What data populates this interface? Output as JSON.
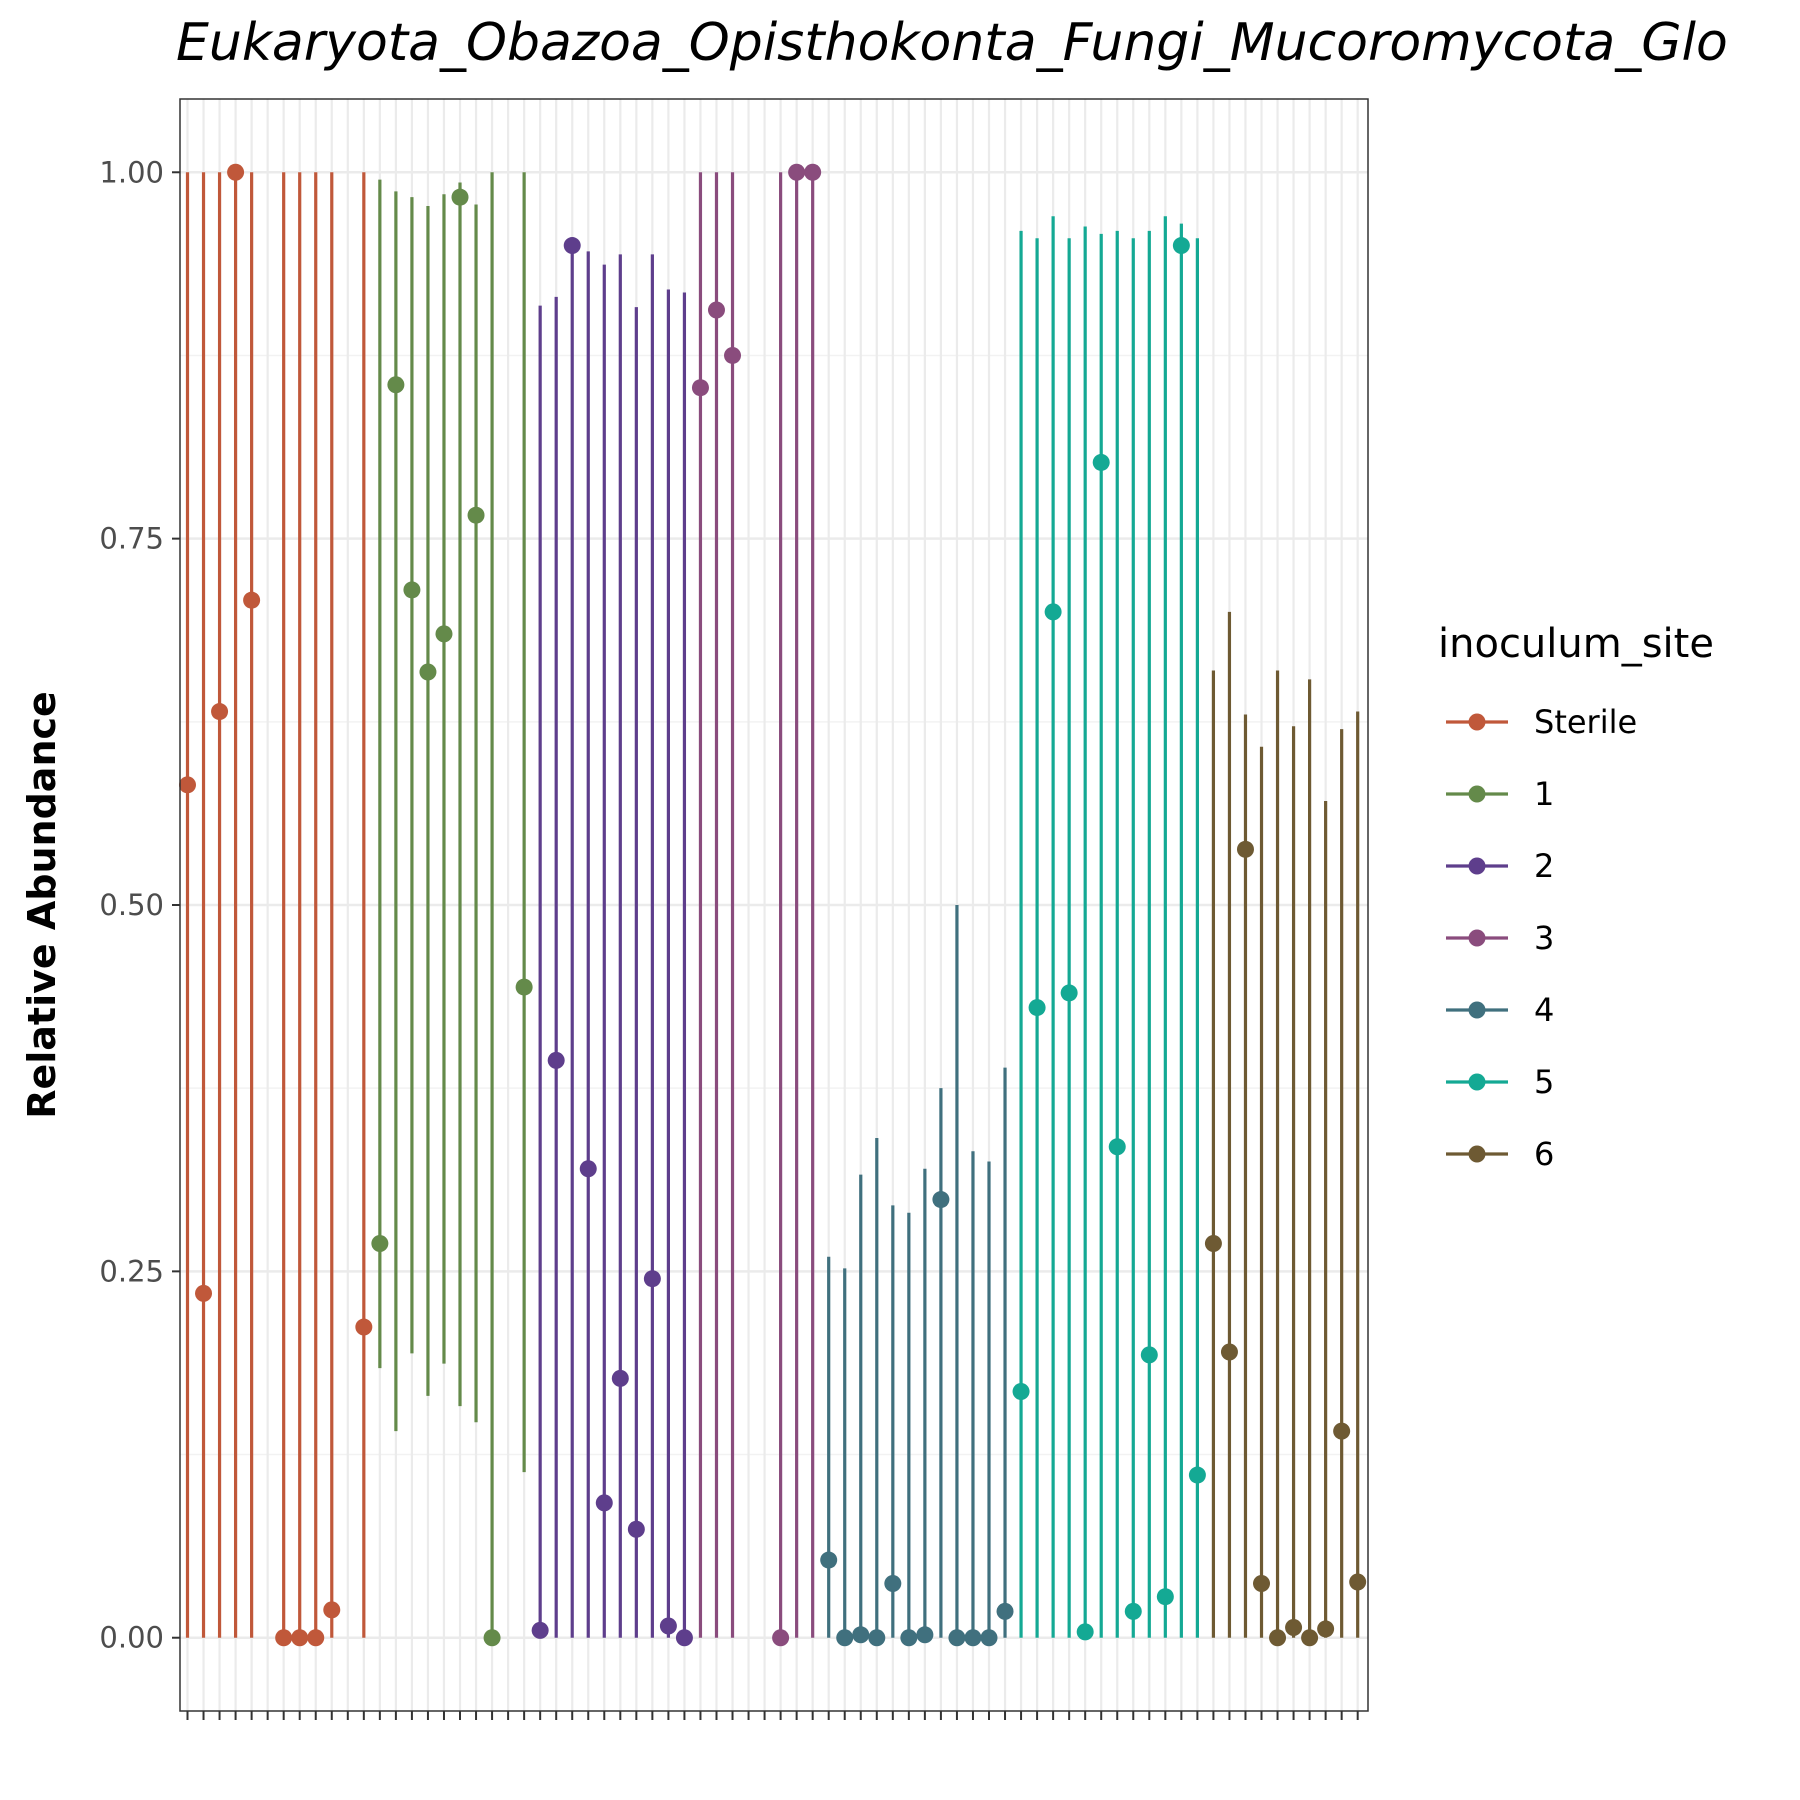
{
  "chart_data": {
    "type": "linerange",
    "title": "Eukaryota_Obazoa_Opisthokonta_Fungi_Mucoromycota_Glo",
    "xlabel": "",
    "ylabel": "Relative Abundance",
    "ylim": [
      -0.05,
      1.05
    ],
    "yticks": [
      "0.00",
      "0.25",
      "0.50",
      "0.75",
      "1.00"
    ],
    "ytick_values": [
      0,
      0.25,
      0.5,
      0.75,
      1.0
    ],
    "grid": true,
    "x_tick_count": 74,
    "legend": {
      "title": "inoculum_site",
      "position": "right",
      "entries": [
        {
          "label": "Sterile",
          "color": "#c0583a"
        },
        {
          "label": "1",
          "color": "#648a4a"
        },
        {
          "label": "2",
          "color": "#5e3e8c"
        },
        {
          "label": "3",
          "color": "#8a4c7d"
        },
        {
          "label": "4",
          "color": "#40707e"
        },
        {
          "label": "5",
          "color": "#14a994"
        },
        {
          "label": "6",
          "color": "#6e5a33"
        }
      ]
    },
    "series": [
      {
        "name": "Sterile",
        "color": "#c0583a",
        "points": [
          {
            "x": 1,
            "ymin": 0,
            "ymax": 1.0,
            "y": 0.582
          },
          {
            "x": 2,
            "ymin": 0,
            "ymax": 1.0,
            "y": 0.235
          },
          {
            "x": 3,
            "ymin": 0,
            "ymax": 1.0,
            "y": 0.632
          },
          {
            "x": 4,
            "ymin": 0,
            "ymax": 1.0,
            "y": 1.0
          },
          {
            "x": 5,
            "ymin": 0,
            "ymax": 1.0,
            "y": 0.708
          },
          {
            "x": 7,
            "ymin": 0,
            "ymax": 1.0,
            "y": 0.0
          },
          {
            "x": 8,
            "ymin": 0,
            "ymax": 1.0,
            "y": 0.0
          },
          {
            "x": 9,
            "ymin": 0,
            "ymax": 1.0,
            "y": 0.0
          },
          {
            "x": 10,
            "ymin": 0,
            "ymax": 1.0,
            "y": 0.019
          },
          {
            "x": 12,
            "ymin": 0,
            "ymax": 1.0,
            "y": 0.212
          }
        ]
      },
      {
        "name": "1",
        "color": "#648a4a",
        "points": [
          {
            "x": 13,
            "ymin": 0.184,
            "ymax": 0.995,
            "y": 0.269
          },
          {
            "x": 14,
            "ymin": 0.141,
            "ymax": 0.987,
            "y": 0.855
          },
          {
            "x": 15,
            "ymin": 0.194,
            "ymax": 0.983,
            "y": 0.715
          },
          {
            "x": 16,
            "ymin": 0.165,
            "ymax": 0.977,
            "y": 0.659
          },
          {
            "x": 17,
            "ymin": 0.187,
            "ymax": 0.985,
            "y": 0.685
          },
          {
            "x": 18,
            "ymin": 0.158,
            "ymax": 0.993,
            "y": 0.983
          },
          {
            "x": 19,
            "ymin": 0.147,
            "ymax": 0.978,
            "y": 0.766
          },
          {
            "x": 20,
            "ymin": 0,
            "ymax": 1.0,
            "y": 0.0
          },
          {
            "x": 22,
            "ymin": 0.113,
            "ymax": 1.0,
            "y": 0.444
          }
        ]
      },
      {
        "name": "2",
        "color": "#5e3e8c",
        "points": [
          {
            "x": 23,
            "ymin": 0,
            "ymax": 0.909,
            "y": 0.005
          },
          {
            "x": 24,
            "ymin": 0,
            "ymax": 0.915,
            "y": 0.394
          },
          {
            "x": 25,
            "ymin": 0,
            "ymax": 0.95,
            "y": 0.95
          },
          {
            "x": 26,
            "ymin": 0,
            "ymax": 0.946,
            "y": 0.32
          },
          {
            "x": 27,
            "ymin": 0,
            "ymax": 0.937,
            "y": 0.092
          },
          {
            "x": 28,
            "ymin": 0,
            "ymax": 0.944,
            "y": 0.177
          },
          {
            "x": 29,
            "ymin": 0,
            "ymax": 0.908,
            "y": 0.074
          },
          {
            "x": 30,
            "ymin": 0,
            "ymax": 0.944,
            "y": 0.245
          },
          {
            "x": 31,
            "ymin": 0,
            "ymax": 0.92,
            "y": 0.008
          },
          {
            "x": 32,
            "ymin": 0,
            "ymax": 0.918,
            "y": 0.0
          }
        ]
      },
      {
        "name": "3",
        "color": "#8a4c7d",
        "points": [
          {
            "x": 33,
            "ymin": 0,
            "ymax": 1.0,
            "y": 0.853
          },
          {
            "x": 34,
            "ymin": 0,
            "ymax": 1.0,
            "y": 0.906
          },
          {
            "x": 35,
            "ymin": 0,
            "ymax": 1.0,
            "y": 0.875
          },
          {
            "x": 38,
            "ymin": 0,
            "ymax": 1.0,
            "y": 0.0
          },
          {
            "x": 39,
            "ymin": 0,
            "ymax": 1.0,
            "y": 1.0
          },
          {
            "x": 40,
            "ymin": 0,
            "ymax": 1.0,
            "y": 1.0
          }
        ]
      },
      {
        "name": "4",
        "color": "#40707e",
        "points": [
          {
            "x": 41,
            "ymin": 0,
            "ymax": 0.26,
            "y": 0.053
          },
          {
            "x": 42,
            "ymin": 0,
            "ymax": 0.252,
            "y": 0.0
          },
          {
            "x": 43,
            "ymin": 0,
            "ymax": 0.316,
            "y": 0.002
          },
          {
            "x": 44,
            "ymin": 0,
            "ymax": 0.341,
            "y": 0.0
          },
          {
            "x": 45,
            "ymin": 0,
            "ymax": 0.295,
            "y": 0.037
          },
          {
            "x": 46,
            "ymin": 0,
            "ymax": 0.29,
            "y": 0.0
          },
          {
            "x": 47,
            "ymin": 0,
            "ymax": 0.32,
            "y": 0.002
          },
          {
            "x": 48,
            "ymin": 0,
            "ymax": 0.375,
            "y": 0.299
          },
          {
            "x": 49,
            "ymin": 0,
            "ymax": 0.5,
            "y": 0.0
          },
          {
            "x": 50,
            "ymin": 0,
            "ymax": 0.332,
            "y": 0.0
          },
          {
            "x": 51,
            "ymin": 0,
            "ymax": 0.325,
            "y": 0.0
          },
          {
            "x": 52,
            "ymin": 0,
            "ymax": 0.389,
            "y": 0.018
          }
        ]
      },
      {
        "name": "5",
        "color": "#14a994",
        "points": [
          {
            "x": 53,
            "ymin": 0,
            "ymax": 0.96,
            "y": 0.168
          },
          {
            "x": 54,
            "ymin": 0,
            "ymax": 0.955,
            "y": 0.43
          },
          {
            "x": 55,
            "ymin": 0,
            "ymax": 0.97,
            "y": 0.7
          },
          {
            "x": 56,
            "ymin": 0,
            "ymax": 0.955,
            "y": 0.44
          },
          {
            "x": 57,
            "ymin": 0,
            "ymax": 0.963,
            "y": 0.004
          },
          {
            "x": 58,
            "ymin": 0,
            "ymax": 0.958,
            "y": 0.802
          },
          {
            "x": 59,
            "ymin": 0,
            "ymax": 0.96,
            "y": 0.335
          },
          {
            "x": 60,
            "ymin": 0,
            "ymax": 0.955,
            "y": 0.018
          },
          {
            "x": 61,
            "ymin": 0,
            "ymax": 0.96,
            "y": 0.193
          },
          {
            "x": 62,
            "ymin": 0,
            "ymax": 0.97,
            "y": 0.028
          },
          {
            "x": 63,
            "ymin": 0,
            "ymax": 0.965,
            "y": 0.95
          },
          {
            "x": 64,
            "ymin": 0,
            "ymax": 0.955,
            "y": 0.111
          }
        ]
      },
      {
        "name": "6",
        "color": "#6e5a33",
        "points": [
          {
            "x": 65,
            "ymin": 0,
            "ymax": 0.66,
            "y": 0.269
          },
          {
            "x": 66,
            "ymin": 0,
            "ymax": 0.7,
            "y": 0.195
          },
          {
            "x": 67,
            "ymin": 0,
            "ymax": 0.63,
            "y": 0.538
          },
          {
            "x": 68,
            "ymin": 0,
            "ymax": 0.608,
            "y": 0.037
          },
          {
            "x": 69,
            "ymin": 0,
            "ymax": 0.66,
            "y": 0.0
          },
          {
            "x": 70,
            "ymin": 0,
            "ymax": 0.622,
            "y": 0.007
          },
          {
            "x": 71,
            "ymin": 0,
            "ymax": 0.654,
            "y": 0.0
          },
          {
            "x": 72,
            "ymin": 0,
            "ymax": 0.571,
            "y": 0.006
          },
          {
            "x": 73,
            "ymin": 0,
            "ymax": 0.62,
            "y": 0.141
          },
          {
            "x": 74,
            "ymin": 0,
            "ymax": 0.632,
            "y": 0.038
          }
        ]
      }
    ]
  }
}
